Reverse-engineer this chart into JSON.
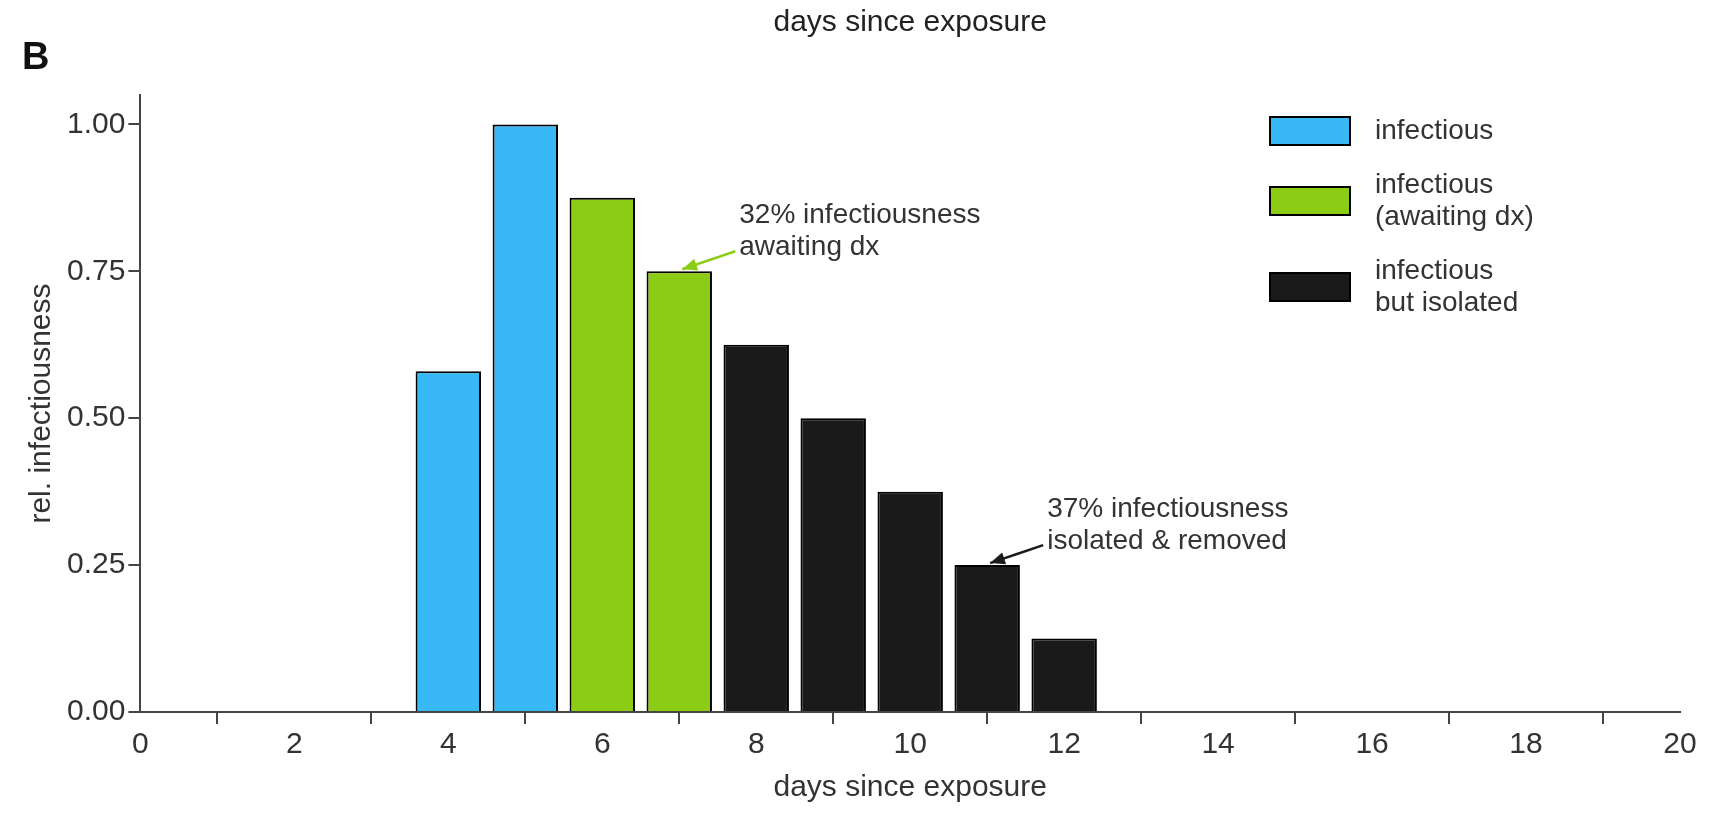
{
  "chart_data": {
    "type": "bar",
    "title": "days since exposure",
    "xlabel": "days since exposure",
    "ylabel": "rel. infectiousness",
    "series": [
      {
        "name": "infectious",
        "color": "#38b9f5",
        "x": [
          4,
          5
        ],
        "values": [
          0.58,
          1.0
        ]
      },
      {
        "name": "infectious (awaiting dx)",
        "color": "#8ccc14",
        "x": [
          6,
          7
        ],
        "values": [
          0.875,
          0.75
        ]
      },
      {
        "name": "infectious but isolated",
        "color": "#1a1a1a",
        "x": [
          8,
          9,
          10,
          11,
          12
        ],
        "values": [
          0.625,
          0.5,
          0.375,
          0.25,
          0.125
        ]
      }
    ],
    "xlim": [
      0,
      20
    ],
    "xticks": [
      0,
      2,
      4,
      6,
      8,
      10,
      12,
      14,
      16,
      18,
      20
    ],
    "ylim": [
      0,
      1.05
    ],
    "yticks": [
      {
        "value": 0,
        "label": "0.00"
      },
      {
        "value": 0.25,
        "label": "0.25"
      },
      {
        "value": 0.5,
        "label": "0.50"
      },
      {
        "value": 0.75,
        "label": "0.75"
      },
      {
        "value": 1,
        "label": "1.00"
      }
    ],
    "grid": false,
    "legend": "top right",
    "annotations": [
      "B",
      {
        "text": "32% infectiousness awaiting dx",
        "x": 7,
        "y": 0.75
      },
      {
        "text": "37% infectiousness isolated & removed",
        "x": 11,
        "y": 0.25
      }
    ]
  }
}
